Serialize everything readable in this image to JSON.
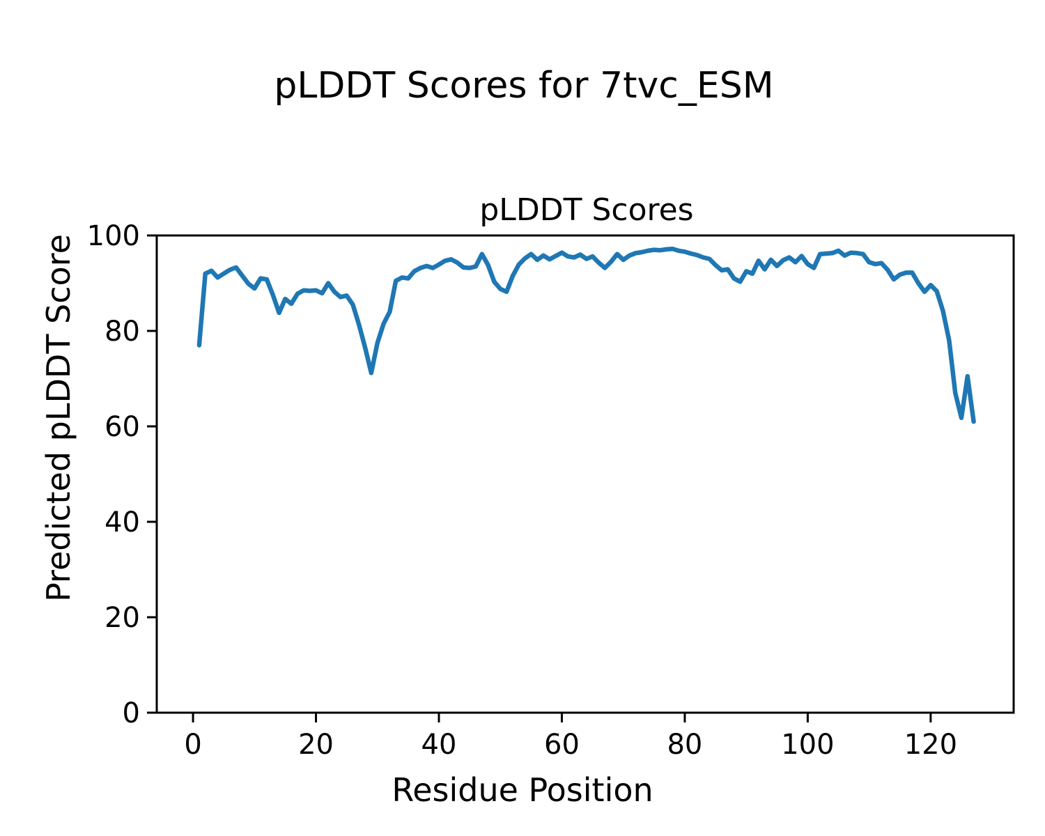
{
  "figure": {
    "suptitle": "pLDDT Scores for 7tvc_ESM"
  },
  "chart_data": {
    "type": "line",
    "title": "pLDDT Scores",
    "xlabel": "Residue Position",
    "ylabel": "Predicted pLDDT Score",
    "x_start": 1,
    "x_end": 127,
    "values": [
      77.0,
      92.0,
      92.6,
      91.2,
      92.0,
      92.8,
      93.3,
      91.6,
      89.9,
      88.9,
      91.0,
      90.8,
      87.5,
      83.8,
      86.7,
      85.7,
      87.8,
      88.5,
      88.4,
      88.5,
      87.9,
      90.0,
      88.2,
      87.1,
      87.4,
      85.5,
      81.3,
      76.5,
      71.2,
      77.5,
      81.5,
      84.0,
      90.5,
      91.2,
      91.0,
      92.5,
      93.2,
      93.6,
      93.2,
      93.9,
      94.7,
      95.0,
      94.3,
      93.3,
      93.2,
      93.5,
      96.1,
      93.8,
      90.3,
      88.8,
      88.2,
      91.5,
      93.9,
      95.2,
      96.1,
      94.9,
      95.8,
      95.0,
      95.7,
      96.4,
      95.6,
      95.4,
      96.0,
      95.1,
      95.6,
      94.3,
      93.2,
      94.5,
      96.1,
      94.9,
      95.8,
      96.3,
      96.5,
      96.8,
      97.0,
      96.9,
      97.1,
      97.2,
      96.8,
      96.6,
      96.2,
      95.9,
      95.4,
      95.1,
      93.8,
      92.7,
      92.9,
      91.0,
      90.3,
      92.5,
      92.0,
      94.7,
      92.9,
      94.9,
      93.6,
      94.8,
      95.4,
      94.4,
      95.7,
      94.0,
      93.2,
      96.1,
      96.2,
      96.3,
      96.8,
      95.8,
      96.4,
      96.3,
      96.1,
      94.4,
      94.0,
      94.2,
      92.8,
      90.8,
      91.8,
      92.2,
      92.2,
      90.0,
      88.2,
      89.6,
      88.3,
      84.2,
      78.0,
      67.0,
      61.8,
      70.5,
      61.0
    ],
    "xlim": [
      -5.9,
      133.5
    ],
    "ylim": [
      0,
      100
    ],
    "xticks": [
      0,
      20,
      40,
      60,
      80,
      100,
      120
    ],
    "yticks": [
      0,
      20,
      40,
      60,
      80,
      100
    ],
    "line_color": "#1f77b4",
    "line_width": 6.5,
    "spine_color": "#000000",
    "grid": false,
    "legend": null
  }
}
